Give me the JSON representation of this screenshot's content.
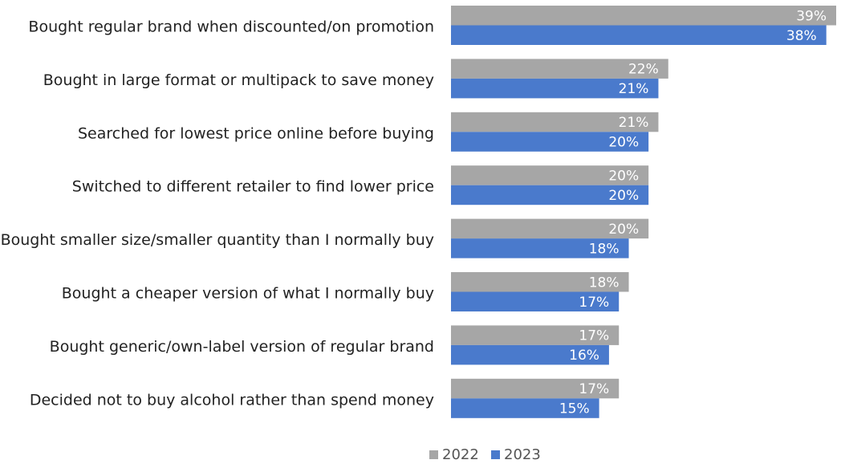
{
  "chart_data": {
    "type": "bar",
    "orientation": "horizontal",
    "categories": [
      "Bought regular brand when discounted/on promotion",
      "Bought in large format or multipack to save money",
      "Searched for lowest price online before buying",
      "Switched to different retailer to find lower price",
      "Bought smaller size/smaller quantity than I normally buy",
      "Bought a cheaper version of what I normally buy",
      "Bought generic/own-label version of regular brand",
      "Decided not to buy alcohol rather than spend money"
    ],
    "series": [
      {
        "name": "2022",
        "color": "#a6a6a6",
        "values": [
          39,
          22,
          21,
          20,
          20,
          18,
          17,
          17
        ],
        "labels": [
          "39%",
          "22%",
          "21%",
          "20%",
          "20%",
          "18%",
          "17%",
          "17%"
        ]
      },
      {
        "name": "2023",
        "color": "#4a7acc",
        "values": [
          38,
          21,
          20,
          20,
          18,
          17,
          16,
          15
        ],
        "labels": [
          "38%",
          "21%",
          "20%",
          "20%",
          "18%",
          "17%",
          "16%",
          "15%"
        ]
      }
    ],
    "value_suffix": "%",
    "xlim": [
      0,
      39
    ],
    "grid": false,
    "legend_position": "bottom-center"
  }
}
